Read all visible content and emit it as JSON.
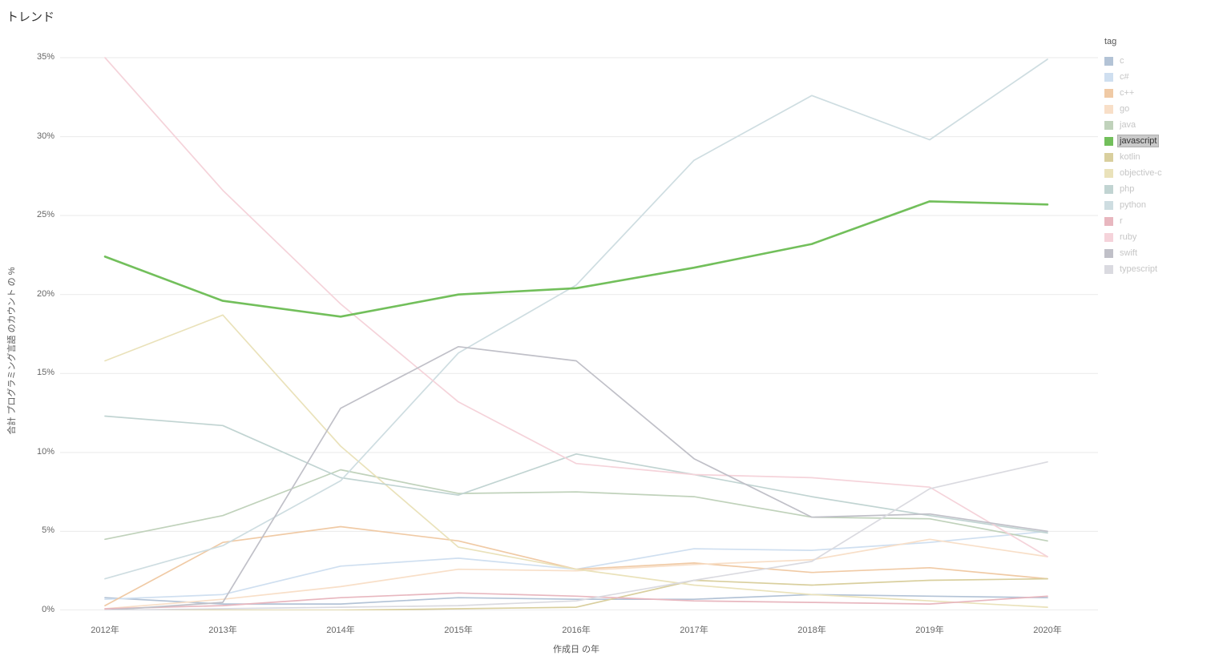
{
  "title": "トレンド",
  "axes": {
    "x_title": "作成日 の年",
    "y_title": "合計 プログラミング言語 のカウント の %"
  },
  "legend": {
    "title": "tag",
    "highlighted": "javascript"
  },
  "chart_data": {
    "type": "line",
    "title": "トレンド",
    "xlabel": "作成日 の年",
    "ylabel": "合計 プログラミング言語 のカウント の %",
    "x": [
      "2012年",
      "2013年",
      "2014年",
      "2015年",
      "2016年",
      "2017年",
      "2018年",
      "2019年",
      "2020年"
    ],
    "ylim": [
      0,
      35
    ],
    "y_tick_step": 5,
    "y_tick_labels": [
      "0%",
      "5%",
      "10%",
      "15%",
      "20%",
      "25%",
      "30%",
      "35%"
    ],
    "grid": true,
    "legend_position": "right",
    "series": [
      {
        "name": "c",
        "color": "#b3c3d6",
        "highlight": false,
        "values": [
          0.8,
          0.4,
          0.4,
          0.8,
          0.7,
          0.7,
          1.0,
          0.9,
          0.8
        ]
      },
      {
        "name": "c#",
        "color": "#cfdff0",
        "highlight": false,
        "values": [
          0.7,
          1.0,
          2.8,
          3.3,
          2.6,
          3.9,
          3.8,
          4.3,
          5.0
        ]
      },
      {
        "name": "c++",
        "color": "#f0caa5",
        "highlight": false,
        "values": [
          0.3,
          4.3,
          5.3,
          4.4,
          2.6,
          3.0,
          2.4,
          2.7,
          2.0
        ]
      },
      {
        "name": "go",
        "color": "#f8dfc8",
        "highlight": false,
        "values": [
          0.1,
          0.7,
          1.5,
          2.6,
          2.5,
          2.9,
          3.2,
          4.5,
          3.4
        ]
      },
      {
        "name": "java",
        "color": "#c0d2bb",
        "highlight": false,
        "values": [
          4.5,
          6.0,
          8.9,
          7.4,
          7.5,
          7.2,
          5.9,
          5.8,
          4.4
        ]
      },
      {
        "name": "javascript",
        "color": "#72bf5b",
        "highlight": true,
        "values": [
          22.4,
          19.6,
          18.6,
          20.0,
          20.4,
          21.7,
          23.2,
          25.9,
          25.7
        ]
      },
      {
        "name": "kotlin",
        "color": "#d9cf9e",
        "highlight": false,
        "values": [
          0.0,
          0.0,
          0.0,
          0.1,
          0.2,
          1.9,
          1.6,
          1.9,
          2.0
        ]
      },
      {
        "name": "objective-c",
        "color": "#eae2ba",
        "highlight": false,
        "values": [
          15.8,
          18.7,
          10.4,
          4.0,
          2.6,
          1.6,
          1.0,
          0.6,
          0.2
        ]
      },
      {
        "name": "php",
        "color": "#c1d4d2",
        "highlight": false,
        "values": [
          12.3,
          11.7,
          8.4,
          7.3,
          9.9,
          8.6,
          7.2,
          6.0,
          4.9
        ]
      },
      {
        "name": "python",
        "color": "#cedde1",
        "highlight": false,
        "values": [
          2.0,
          4.1,
          8.2,
          16.3,
          20.6,
          28.5,
          32.6,
          29.8,
          34.9
        ]
      },
      {
        "name": "r",
        "color": "#e8b7bf",
        "highlight": false,
        "values": [
          0.1,
          0.3,
          0.8,
          1.1,
          0.9,
          0.6,
          0.5,
          0.4,
          0.9
        ]
      },
      {
        "name": "ruby",
        "color": "#f5d3da",
        "highlight": false,
        "values": [
          35.0,
          26.6,
          19.4,
          13.2,
          9.3,
          8.6,
          8.4,
          7.8,
          3.4
        ]
      },
      {
        "name": "swift",
        "color": "#c0c0c8",
        "highlight": false,
        "values": [
          0.0,
          0.5,
          12.8,
          16.7,
          15.8,
          9.6,
          5.9,
          6.1,
          5.0
        ]
      },
      {
        "name": "typescript",
        "color": "#dadae0",
        "highlight": false,
        "values": [
          0.0,
          0.1,
          0.2,
          0.3,
          0.6,
          1.9,
          3.1,
          7.7,
          9.4
        ]
      }
    ]
  }
}
